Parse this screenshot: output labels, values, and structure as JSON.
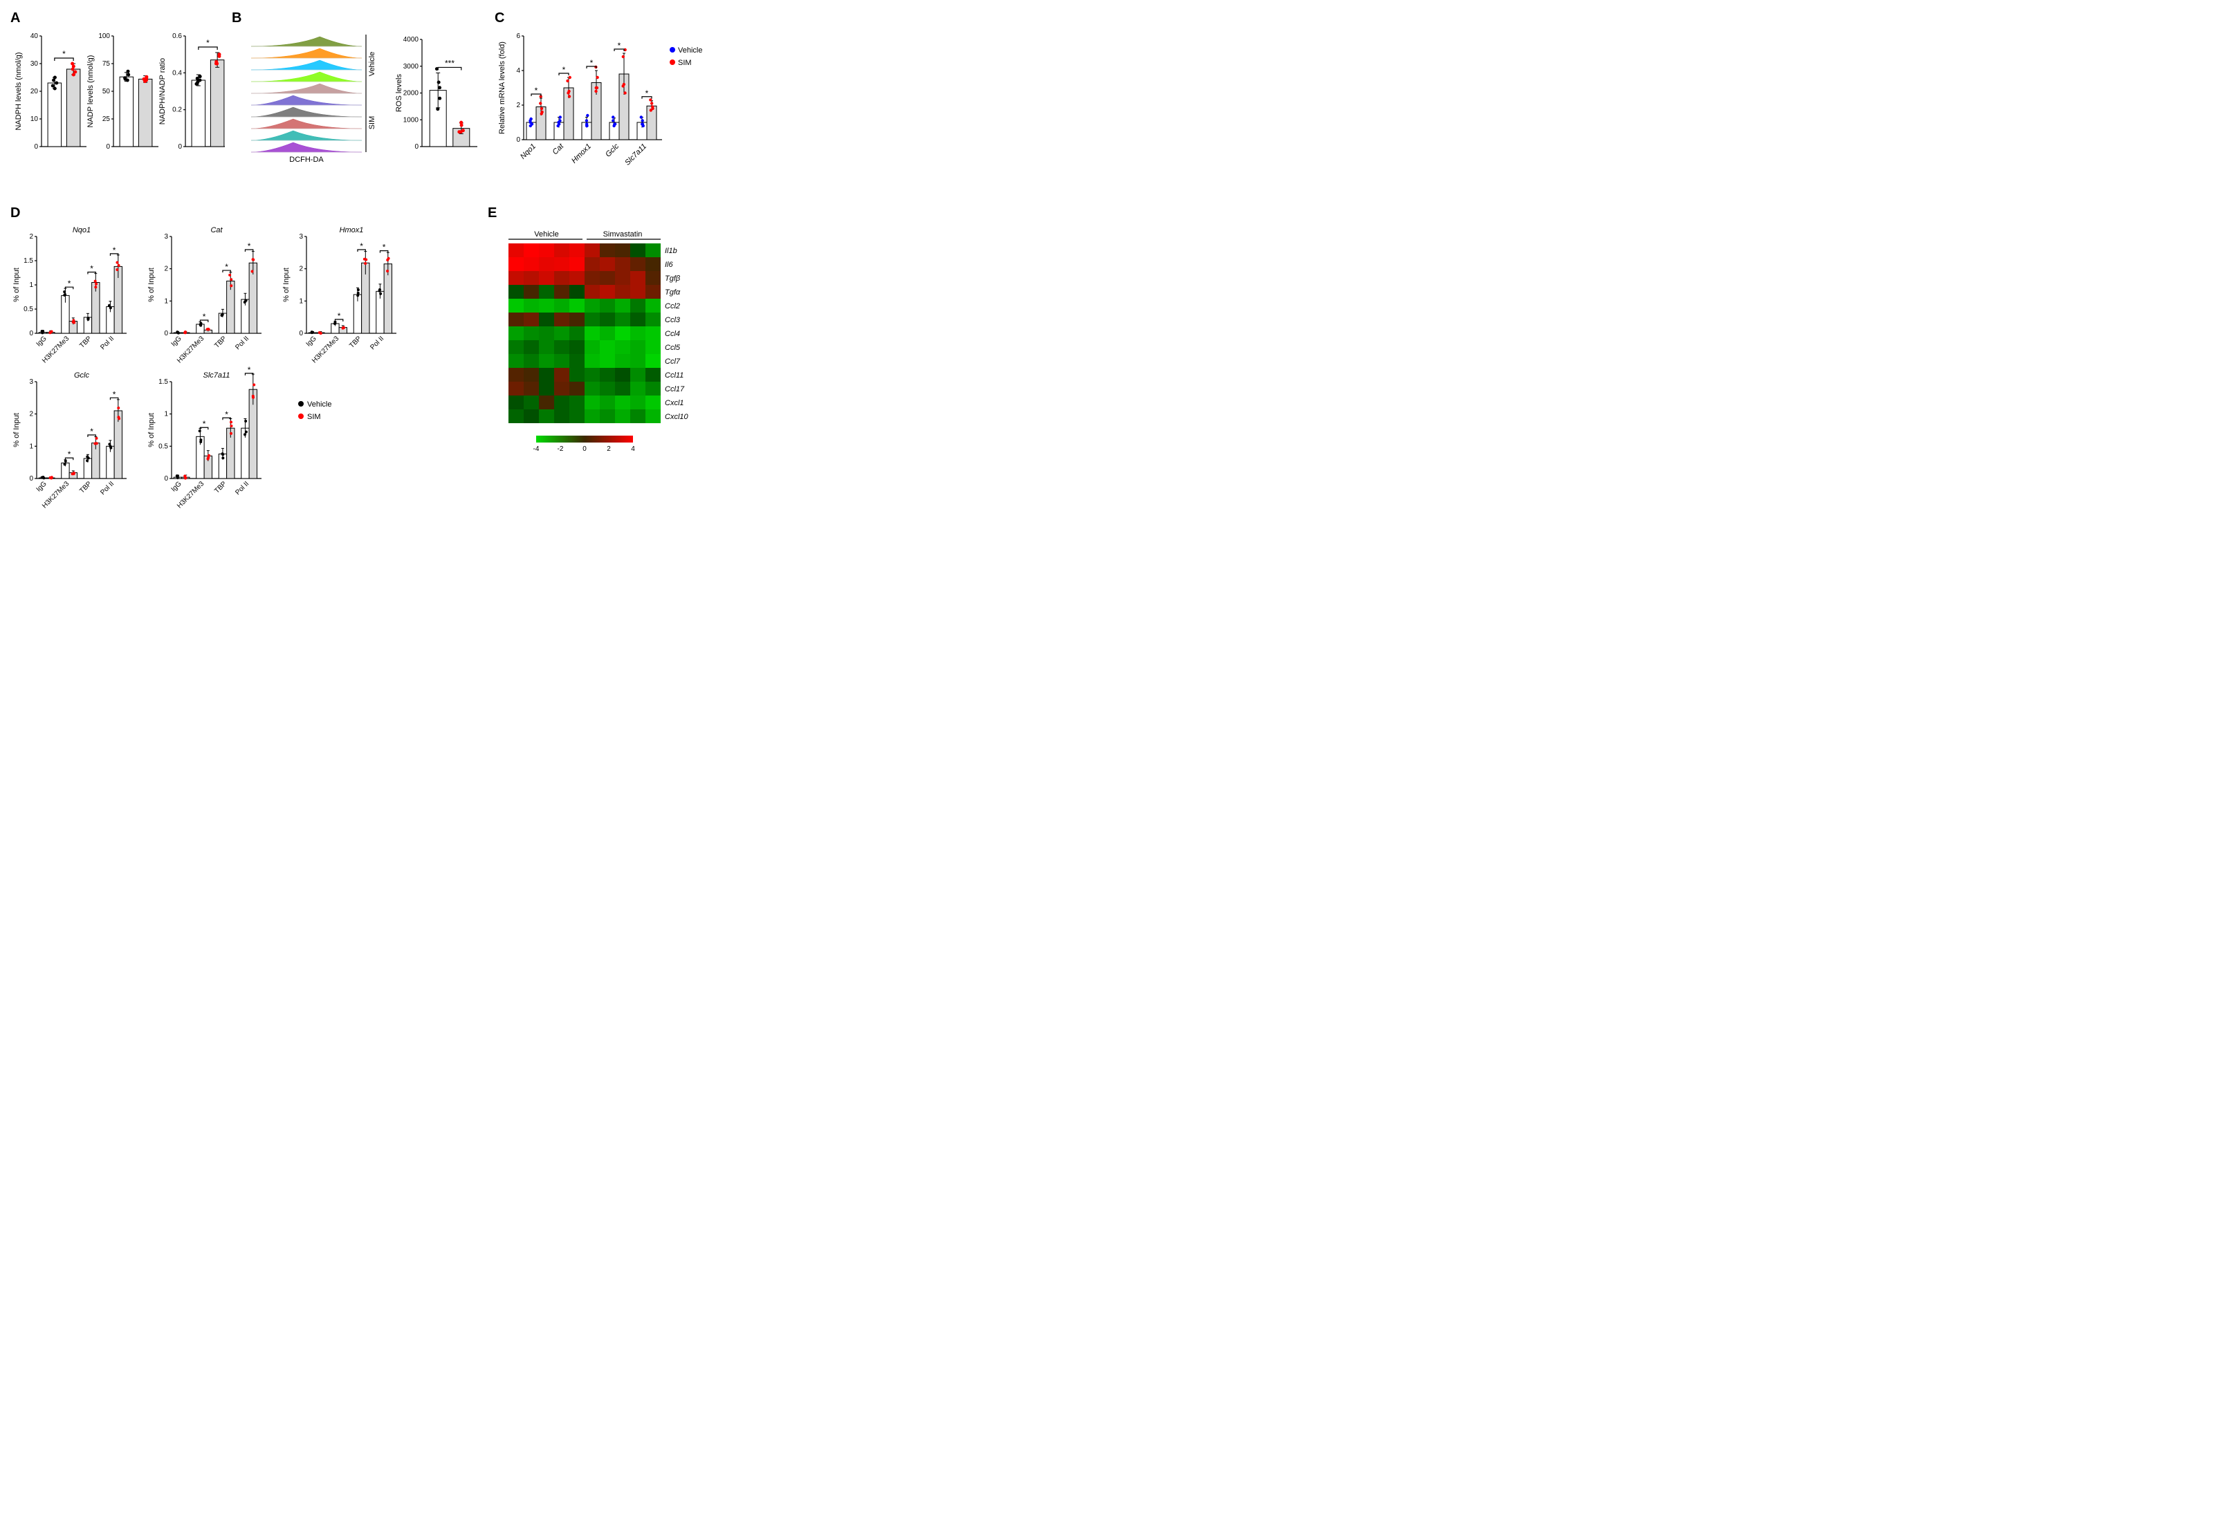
{
  "colors": {
    "vehicle_dot": "#000000",
    "sim_dot": "#ff0000",
    "vehicle_blue": "#0000ff",
    "bar_vehicle": "#ffffff",
    "bar_sim": "#d9d9d9",
    "axis": "#000000"
  },
  "legend": {
    "vehicle": "Vehicle",
    "sim": "SIM"
  },
  "panelA": {
    "label": "A",
    "charts": [
      {
        "ylabel": "NADPH levels (nmol/g)",
        "ylim": [
          0,
          40
        ],
        "yticks": [
          0,
          10,
          20,
          30,
          40
        ],
        "bars": [
          {
            "group": "Vehicle",
            "mean": 23,
            "err": 2,
            "points": [
              22,
              23,
              21,
              24,
              25
            ],
            "color": "#000000"
          },
          {
            "group": "SIM",
            "mean": 28,
            "err": 2,
            "points": [
              27,
              29,
              28,
              30,
              26
            ],
            "color": "#ff0000"
          }
        ],
        "sig": "*"
      },
      {
        "ylabel": "NADP levels (nmol/g)",
        "ylim": [
          0,
          100
        ],
        "yticks": [
          0,
          25,
          50,
          75,
          100
        ],
        "bars": [
          {
            "group": "Vehicle",
            "mean": 63,
            "err": 4,
            "points": [
              60,
              65,
              62,
              68,
              61
            ],
            "color": "#000000"
          },
          {
            "group": "SIM",
            "mean": 61,
            "err": 3,
            "points": [
              59,
              62,
              60,
              63,
              61
            ],
            "color": "#ff0000"
          }
        ],
        "sig": null
      },
      {
        "ylabel": "NADPH/NADP ratio",
        "ylim": [
          0,
          0.6
        ],
        "yticks": [
          0.0,
          0.2,
          0.4,
          0.6
        ],
        "bars": [
          {
            "group": "Vehicle",
            "mean": 0.36,
            "err": 0.03,
            "points": [
              0.35,
              0.37,
              0.34,
              0.38,
              0.36
            ],
            "color": "#000000"
          },
          {
            "group": "SIM",
            "mean": 0.47,
            "err": 0.04,
            "points": [
              0.45,
              0.49,
              0.46,
              0.5,
              0.45
            ],
            "color": "#ff0000"
          }
        ],
        "sig": "*"
      }
    ]
  },
  "panelB": {
    "label": "B",
    "xaxis": "DCFH-DA",
    "groups": [
      "Vehicle",
      "SIM"
    ],
    "hist_colors": [
      "#6b8e23",
      "#ff8c00",
      "#00bfff",
      "#7cfc00",
      "#bc8f8f",
      "#6a5acd",
      "#696969",
      "#cd5c5c",
      "#20b2aa",
      "#9932cc"
    ],
    "bar_ylabel": "ROS levels",
    "bar_ylim": [
      0,
      4000
    ],
    "bar_yticks": [
      0,
      1000,
      2000,
      3000,
      4000
    ],
    "bars": [
      {
        "group": "Vehicle",
        "mean": 2100,
        "err": 650,
        "points": [
          1800,
          2200,
          2900,
          2400,
          1400
        ],
        "color": "#000000"
      },
      {
        "group": "SIM",
        "mean": 680,
        "err": 200,
        "points": [
          600,
          800,
          900,
          550,
          550
        ],
        "color": "#ff0000"
      }
    ],
    "sig": "***"
  },
  "panelC": {
    "label": "C",
    "ylabel": "Relative mRNA levels (fold)",
    "ylim": [
      0,
      6
    ],
    "yticks": [
      0,
      2,
      4,
      6
    ],
    "genes": [
      "Nqo1",
      "Cat",
      "Hmox1",
      "Gclc",
      "Slc7a11"
    ],
    "data": {
      "Nqo1": {
        "v": {
          "mean": 1.0,
          "err": 0.2,
          "pts": [
            0.9,
            1.1,
            1.0,
            1.2,
            0.8
          ]
        },
        "s": {
          "mean": 1.9,
          "err": 0.5,
          "pts": [
            1.6,
            1.8,
            2.5,
            2.1,
            1.5
          ]
        },
        "sig": "*"
      },
      "Cat": {
        "v": {
          "mean": 1.0,
          "err": 0.3,
          "pts": [
            0.8,
            1.1,
            1.3,
            0.9,
            1.0
          ]
        },
        "s": {
          "mean": 3.0,
          "err": 0.6,
          "pts": [
            2.7,
            3.4,
            3.6,
            2.8,
            2.5
          ]
        },
        "sig": "*"
      },
      "Hmox1": {
        "v": {
          "mean": 1.0,
          "err": 0.3,
          "pts": [
            0.8,
            1.1,
            1.4,
            0.9,
            0.8
          ]
        },
        "s": {
          "mean": 3.3,
          "err": 0.7,
          "pts": [
            3.0,
            3.6,
            4.2,
            2.8,
            3.0
          ]
        },
        "sig": "*"
      },
      "Gclc": {
        "v": {
          "mean": 1.0,
          "err": 0.25,
          "pts": [
            0.9,
            1.1,
            1.3,
            0.8,
            0.9
          ]
        },
        "s": {
          "mean": 3.8,
          "err": 1.2,
          "pts": [
            3.2,
            5.2,
            4.8,
            3.1,
            2.7
          ]
        },
        "sig": "*"
      },
      "Slc7a11": {
        "v": {
          "mean": 1.0,
          "err": 0.3,
          "pts": [
            0.8,
            1.1,
            1.3,
            0.9,
            0.9
          ]
        },
        "s": {
          "mean": 1.95,
          "err": 0.3,
          "pts": [
            1.7,
            1.9,
            2.3,
            2.1,
            1.8
          ]
        },
        "sig": "*"
      }
    }
  },
  "panelD": {
    "label": "D",
    "ylabel": "% of Input",
    "categories": [
      "IgG",
      "H3K27Me3",
      "TBP",
      "Pol II"
    ],
    "charts": [
      {
        "gene": "Nqo1",
        "ylim": [
          0,
          2.0
        ],
        "yticks": [
          0,
          0.5,
          1.0,
          1.5,
          2.0
        ],
        "data": {
          "IgG": {
            "v": 0.02,
            "s": 0.02
          },
          "H3K27Me3": {
            "v": 0.78,
            "s": 0.25,
            "sig": "*"
          },
          "TBP": {
            "v": 0.33,
            "s": 1.05,
            "sig": "*"
          },
          "Pol II": {
            "v": 0.55,
            "s": 1.38,
            "sig": "*"
          }
        }
      },
      {
        "gene": "Cat",
        "ylim": [
          0,
          3
        ],
        "yticks": [
          0,
          1,
          2,
          3
        ],
        "data": {
          "IgG": {
            "v": 0.02,
            "s": 0.02
          },
          "H3K27Me3": {
            "v": 0.28,
            "s": 0.1,
            "sig": "*"
          },
          "TBP": {
            "v": 0.62,
            "s": 1.62,
            "sig": "*"
          },
          "Pol II": {
            "v": 1.05,
            "s": 2.18,
            "sig": "*"
          }
        }
      },
      {
        "gene": "Hmox1",
        "ylim": [
          0,
          3
        ],
        "yticks": [
          0,
          1,
          2,
          3
        ],
        "data": {
          "IgG": {
            "v": 0.02,
            "s": 0.02
          },
          "H3K27Me3": {
            "v": 0.3,
            "s": 0.18,
            "sig": "*"
          },
          "TBP": {
            "v": 1.2,
            "s": 2.18,
            "sig": "*"
          },
          "Pol II": {
            "v": 1.3,
            "s": 2.15,
            "sig": "*"
          }
        }
      },
      {
        "gene": "Gclc",
        "ylim": [
          0,
          3
        ],
        "yticks": [
          0,
          1,
          2,
          3
        ],
        "data": {
          "IgG": {
            "v": 0.02,
            "s": 0.02
          },
          "H3K27Me3": {
            "v": 0.48,
            "s": 0.18,
            "sig": "*"
          },
          "TBP": {
            "v": 0.62,
            "s": 1.1,
            "sig": "*"
          },
          "Pol II": {
            "v": 1.0,
            "s": 2.1,
            "sig": "*"
          }
        }
      },
      {
        "gene": "Slc7a11",
        "ylim": [
          0,
          1.5
        ],
        "yticks": [
          0,
          0.5,
          1.0,
          1.5
        ],
        "data": {
          "IgG": {
            "v": 0.02,
            "s": 0.02
          },
          "H3K27Me3": {
            "v": 0.65,
            "s": 0.35,
            "sig": "*"
          },
          "TBP": {
            "v": 0.38,
            "s": 0.78,
            "sig": "*"
          },
          "Pol II": {
            "v": 0.78,
            "s": 1.38,
            "sig": "*"
          }
        }
      }
    ]
  },
  "panelE": {
    "label": "E",
    "col_groups": [
      "Vehicle",
      "Simvastatin"
    ],
    "genes": [
      "Il1b",
      "Il6",
      "Tgfβ",
      "Tgfα",
      "Ccl2",
      "Ccl3",
      "Ccl4",
      "Ccl5",
      "Ccl7",
      "Ccl11",
      "Ccl17",
      "Cxcl1",
      "Cxcl10"
    ],
    "n_per_group": 5,
    "scale": {
      "min": -4,
      "max": 4,
      "ticks": [
        -4,
        -2,
        0,
        2,
        4
      ]
    },
    "values": [
      [
        3.5,
        4.0,
        3.8,
        3.2,
        3.6,
        2.5,
        0.5,
        0.3,
        -0.5,
        -2.0
      ],
      [
        4.0,
        3.8,
        3.5,
        3.6,
        3.9,
        1.8,
        2.2,
        1.5,
        0.8,
        0.2
      ],
      [
        2.8,
        2.5,
        3.0,
        2.2,
        2.6,
        1.2,
        1.0,
        1.5,
        2.2,
        0.5
      ],
      [
        -0.5,
        0.2,
        -1.0,
        0.5,
        -0.3,
        2.0,
        2.5,
        1.8,
        2.2,
        1.0
      ],
      [
        -3.5,
        -3.0,
        -3.2,
        -2.8,
        -3.5,
        -2.5,
        -2.0,
        -2.8,
        -1.5,
        -3.0
      ],
      [
        0.5,
        1.0,
        -0.5,
        0.8,
        0.2,
        -1.5,
        -1.0,
        -1.8,
        -0.8,
        -2.0
      ],
      [
        -2.5,
        -2.0,
        -1.8,
        -2.2,
        -1.5,
        -3.5,
        -3.0,
        -3.8,
        -3.2,
        -3.5
      ],
      [
        -1.5,
        -1.0,
        -1.8,
        -1.2,
        -0.8,
        -3.0,
        -3.5,
        -3.2,
        -2.8,
        -3.5
      ],
      [
        -2.0,
        -1.5,
        -2.2,
        -1.8,
        -1.0,
        -3.2,
        -3.5,
        -3.0,
        -2.8,
        -3.8
      ],
      [
        0.5,
        0.2,
        -0.5,
        1.0,
        -1.0,
        -1.5,
        -1.0,
        -0.5,
        -2.0,
        -0.8
      ],
      [
        1.0,
        0.5,
        -0.5,
        0.8,
        0.2,
        -2.0,
        -1.5,
        -1.0,
        -2.5,
        -1.8
      ],
      [
        -0.5,
        -1.0,
        0.2,
        -0.8,
        -1.2,
        -3.0,
        -2.5,
        -3.2,
        -2.8,
        -3.5
      ],
      [
        -1.0,
        -0.5,
        -1.5,
        -0.8,
        -1.2,
        -2.5,
        -2.0,
        -2.8,
        -1.8,
        -3.0
      ]
    ]
  }
}
